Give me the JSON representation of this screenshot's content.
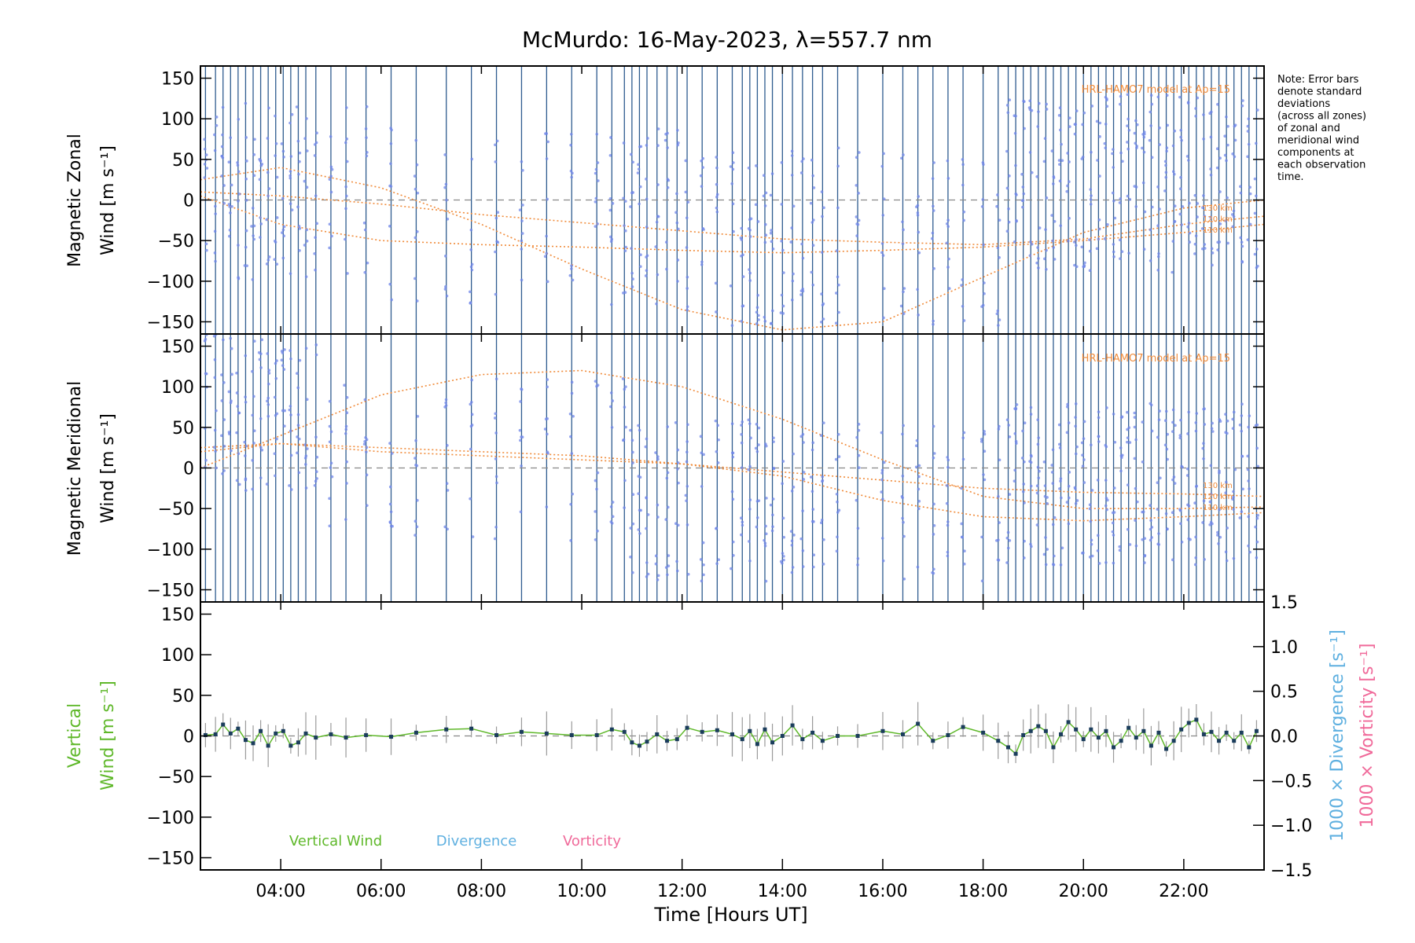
{
  "colors": {
    "axis": "#000000",
    "wind_point": "#6f86e8",
    "wind_line": "#2f5c8f",
    "model": "#f08b3a",
    "zero": "#888888",
    "vertical": "#5fb82a",
    "divergence": "#5fb0e0",
    "vorticity": "#f06a9a",
    "err": "#9a9a9a",
    "dot": "#1b3d5c"
  },
  "chart_data": [
    {
      "type": "scatter",
      "title": "McMurdo: 16-May-2023, λ=557.7 nm",
      "note": [
        "Note: Error bars",
        "denote standard",
        "deviations",
        "(across all zones)",
        "of zonal and",
        "meridional wind",
        "components at",
        "each observation",
        "time."
      ],
      "panel": "zonal",
      "ylabel_line1": "Magnetic Zonal",
      "ylabel_line2": "Wind [m s⁻¹]",
      "ylim": [
        -165,
        165
      ],
      "yticks": [
        150,
        100,
        50,
        0,
        -50,
        -100,
        -150
      ],
      "ytick_labels": [
        "150",
        "100",
        "50",
        "0",
        "−50",
        "−100",
        "−150"
      ],
      "xlim": [
        2.4,
        23.6
      ],
      "model_label": "HRL-HAMO7 model at Ap=15",
      "model_altitudes": [
        "130 km",
        "120 km",
        "110 km"
      ],
      "model_series": [
        {
          "name": "HWM 110 km",
          "x": [
            2.4,
            4,
            6,
            8,
            10,
            12,
            14,
            16,
            18,
            20,
            22,
            23.6
          ],
          "values": [
            10,
            5,
            -5,
            -18,
            -28,
            -38,
            -48,
            -52,
            -55,
            -48,
            -30,
            -20
          ]
        },
        {
          "name": "HWM 120 km",
          "x": [
            2.4,
            4,
            6,
            8,
            10,
            12,
            14,
            16,
            18,
            20,
            22,
            23.6
          ],
          "values": [
            5,
            -30,
            -50,
            -55,
            -58,
            -62,
            -65,
            -62,
            -58,
            -50,
            -40,
            -30
          ]
        },
        {
          "name": "HWM 130 km",
          "x": [
            2.4,
            4,
            6,
            8,
            10,
            12,
            14,
            16,
            18,
            20,
            22,
            23.6
          ],
          "values": [
            25,
            40,
            15,
            -30,
            -85,
            -135,
            -160,
            -150,
            -95,
            -40,
            -10,
            0
          ]
        }
      ]
    },
    {
      "type": "scatter",
      "panel": "meridional",
      "ylabel_line1": "Magnetic Meridional",
      "ylabel_line2": "Wind [m s⁻¹]",
      "ylim": [
        -165,
        165
      ],
      "yticks": [
        150,
        100,
        50,
        0,
        -50,
        -100,
        -150
      ],
      "ytick_labels": [
        "150",
        "100",
        "50",
        "0",
        "−50",
        "−100",
        "−150"
      ],
      "xlim": [
        2.4,
        23.6
      ],
      "model_label": "HRL-HAMO7 model at Ap=15",
      "model_altitudes": [
        "130 km",
        "120 km",
        "110 km"
      ],
      "model_series": [
        {
          "name": "HWM 110 km",
          "x": [
            2.4,
            4,
            6,
            8,
            10,
            12,
            14,
            16,
            18,
            20,
            22,
            23.6
          ],
          "values": [
            20,
            30,
            25,
            20,
            15,
            5,
            -5,
            -15,
            -25,
            -30,
            -32,
            -35
          ]
        },
        {
          "name": "HWM 120 km",
          "x": [
            2.4,
            4,
            6,
            8,
            10,
            12,
            14,
            16,
            18,
            20,
            22,
            23.6
          ],
          "values": [
            0,
            40,
            90,
            115,
            120,
            100,
            60,
            10,
            -35,
            -50,
            -50,
            -48
          ]
        },
        {
          "name": "HWM 130 km",
          "x": [
            2.4,
            4,
            6,
            8,
            10,
            12,
            14,
            16,
            18,
            20,
            22,
            23.6
          ],
          "values": [
            25,
            30,
            20,
            15,
            10,
            5,
            -10,
            -40,
            -60,
            -65,
            -60,
            -55
          ]
        }
      ]
    },
    {
      "type": "line",
      "panel": "vertical",
      "ylabel_line1": "Vertical",
      "ylabel_line2": "Wind [m s⁻¹]",
      "ylim": [
        -165,
        165
      ],
      "yticks": [
        150,
        100,
        50,
        0,
        -50,
        -100,
        -150
      ],
      "ytick_labels": [
        "150",
        "100",
        "50",
        "0",
        "−50",
        "−100",
        "−150"
      ],
      "y2lim": [
        -1.5,
        1.5
      ],
      "y2ticks": [
        1.5,
        1.0,
        0.5,
        0.0,
        -0.5,
        -1.0,
        -1.5
      ],
      "y2tick_labels": [
        "1.5",
        "1.0",
        "0.5",
        "0.0",
        "−0.5",
        "−1.0",
        "−1.5"
      ],
      "y2label_div": "1000 × Divergence [s⁻¹]",
      "y2label_vort": "1000 × Vorticity [s⁻¹]",
      "legend": [
        "Vertical Wind",
        "Divergence",
        "Vorticity"
      ],
      "xlabel": "Time [Hours UT]",
      "xlim": [
        2.4,
        23.6
      ],
      "xticks": [
        4,
        6,
        8,
        10,
        12,
        14,
        16,
        18,
        20,
        22
      ],
      "xtick_labels": [
        "04:00",
        "06:00",
        "08:00",
        "10:00",
        "12:00",
        "14:00",
        "16:00",
        "18:00",
        "20:00",
        "22:00"
      ],
      "x": [
        2.5,
        2.7,
        2.85,
        3.0,
        3.15,
        3.3,
        3.45,
        3.6,
        3.75,
        3.9,
        4.05,
        4.2,
        4.35,
        4.5,
        4.7,
        5.0,
        5.3,
        5.7,
        6.2,
        6.7,
        7.3,
        7.8,
        8.3,
        8.8,
        9.3,
        9.8,
        10.3,
        10.6,
        10.85,
        11.0,
        11.15,
        11.3,
        11.5,
        11.7,
        11.9,
        12.1,
        12.4,
        12.7,
        13.0,
        13.2,
        13.35,
        13.5,
        13.65,
        13.8,
        14.0,
        14.2,
        14.4,
        14.6,
        14.8,
        15.1,
        15.5,
        16.0,
        16.4,
        16.7,
        17.0,
        17.3,
        17.6,
        18.0,
        18.3,
        18.5,
        18.65,
        18.8,
        18.95,
        19.1,
        19.25,
        19.4,
        19.55,
        19.7,
        19.85,
        20.0,
        20.15,
        20.3,
        20.45,
        20.6,
        20.75,
        20.9,
        21.05,
        21.2,
        21.35,
        21.5,
        21.65,
        21.8,
        21.95,
        22.1,
        22.25,
        22.4,
        22.55,
        22.7,
        22.85,
        23.0,
        23.15,
        23.3,
        23.45
      ],
      "values": [
        1,
        2,
        14,
        3,
        9,
        -5,
        -9,
        6,
        -12,
        3,
        6,
        -12,
        -8,
        3,
        -2,
        2,
        -2,
        1,
        -1,
        4,
        8,
        9,
        1,
        5,
        3,
        1,
        1,
        8,
        5,
        -8,
        -12,
        -7,
        2,
        -6,
        -4,
        10,
        5,
        7,
        2,
        -4,
        6,
        -10,
        8,
        -8,
        0,
        13,
        -4,
        4,
        -6,
        0,
        0,
        6,
        2,
        15,
        -6,
        1,
        11,
        4,
        -6,
        -14,
        -22,
        1,
        6,
        12,
        6,
        -14,
        2,
        17,
        8,
        -4,
        8,
        -2,
        6,
        -14,
        -6,
        10,
        -2,
        6,
        -12,
        4,
        -16,
        -6,
        8,
        16,
        20,
        2,
        5,
        -6,
        4,
        -6,
        4,
        -14,
        6
      ]
    }
  ]
}
